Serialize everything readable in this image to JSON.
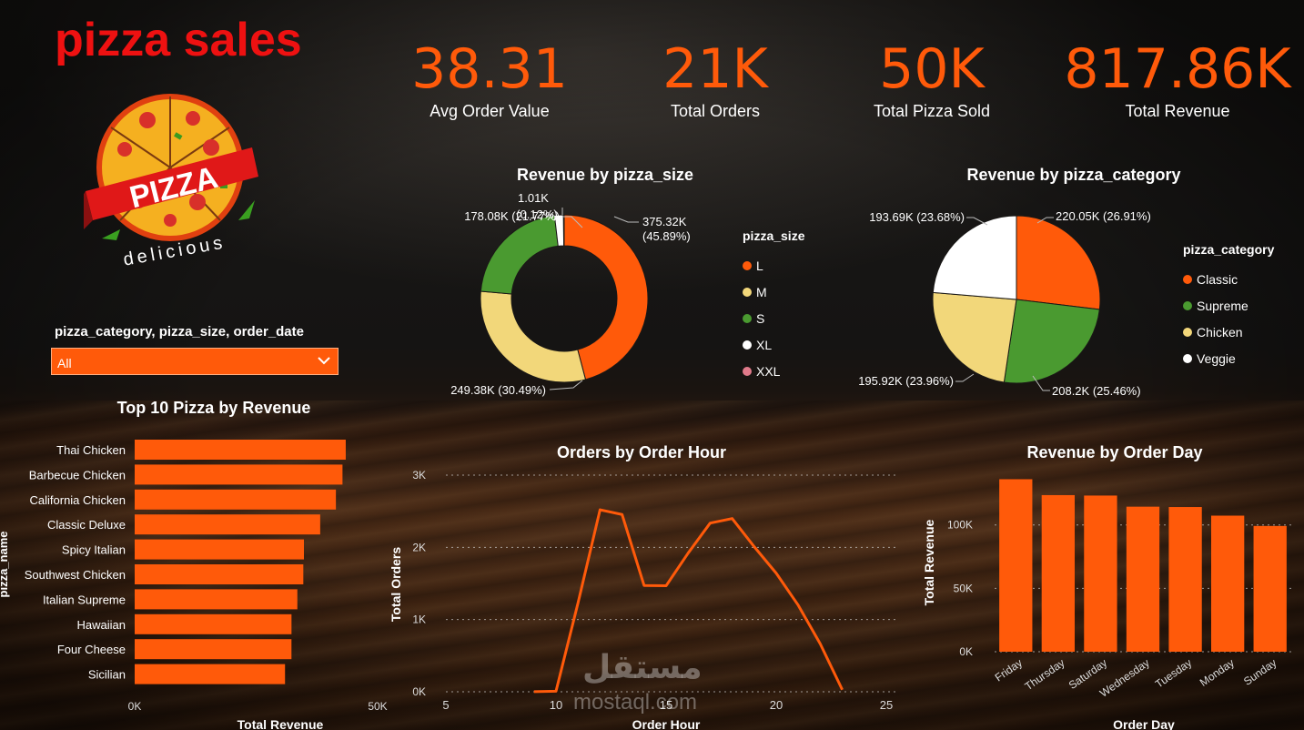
{
  "page": {
    "title": "pizza sales"
  },
  "logo": {
    "main_text": "PIZZA",
    "sub_text": "delicious"
  },
  "kpis": [
    {
      "value": "38.31",
      "label": "Avg Order Value"
    },
    {
      "value": "21K",
      "label": "Total Orders"
    },
    {
      "value": "50K",
      "label": "Total Pizza Sold"
    },
    {
      "value": "817.86K",
      "label": "Total Revenue"
    }
  ],
  "slicer": {
    "label": "pizza_category, pizza_size, order_date",
    "value": "All"
  },
  "colors": {
    "accent": "#ff5a0a",
    "green": "#4a9a30",
    "yellow": "#f2d77a",
    "white": "#ffffff",
    "pink": "#e07a8a",
    "title_red": "#ee1111"
  },
  "watermark": {
    "arabic": "مستقل",
    "latin": "mostaql.com"
  },
  "chart_data": [
    {
      "id": "size",
      "type": "pie",
      "title": "Revenue by pizza_size",
      "legend_title": "pizza_size",
      "legend_position": "right",
      "donut": true,
      "categories": [
        "L",
        "M",
        "S",
        "XL",
        "XXL"
      ],
      "values": [
        375.32,
        249.38,
        178.08,
        14.07,
        1.01
      ],
      "colors": [
        "#ff5a0a",
        "#f2d77a",
        "#4a9a30",
        "#ffffff",
        "#e07a8a"
      ],
      "labels": [
        "375.32K (45.89%)",
        "249.38K (30.49%)",
        "178.08K (21.77%)",
        "",
        "1.01K (0.12%)"
      ]
    },
    {
      "id": "category",
      "type": "pie",
      "title": "Revenue by pizza_category",
      "legend_title": "pizza_category",
      "legend_position": "right",
      "donut": false,
      "categories": [
        "Classic",
        "Supreme",
        "Chicken",
        "Veggie"
      ],
      "values": [
        220.05,
        208.2,
        195.92,
        193.69
      ],
      "colors": [
        "#ff5a0a",
        "#4a9a30",
        "#f2d77a",
        "#ffffff"
      ],
      "labels": [
        "220.05K (26.91%)",
        "208.2K (25.46%)",
        "195.92K (23.96%)",
        "193.69K (23.68%)"
      ]
    },
    {
      "id": "top10",
      "type": "bar",
      "orientation": "horizontal",
      "title": "Top 10 Pizza by Revenue",
      "xlabel": "Total Revenue",
      "ylabel": "pizza_name",
      "categories": [
        "Thai Chicken",
        "Barbecue Chicken",
        "California Chicken",
        "Classic Deluxe",
        "Spicy Italian",
        "Southwest Chicken",
        "Italian Supreme",
        "Hawaiian",
        "Four Cheese",
        "Sicilian"
      ],
      "values": [
        43434,
        42768,
        41410,
        38180,
        34831,
        34706,
        33477,
        32273,
        32266,
        30940
      ],
      "xlim": [
        0,
        50000
      ],
      "x_ticks": [
        "0K",
        "50K"
      ]
    },
    {
      "id": "hours",
      "type": "line",
      "title": "Orders by Order Hour",
      "xlabel": "Order Hour",
      "ylabel": "Total Orders",
      "x": [
        9,
        10,
        11,
        12,
        13,
        14,
        15,
        16,
        17,
        18,
        19,
        20,
        21,
        22,
        23
      ],
      "values": [
        1,
        8,
        1231,
        2520,
        2455,
        1472,
        1468,
        1920,
        2336,
        2399,
        2009,
        1642,
        1198,
        663,
        28
      ],
      "xlim": [
        5,
        25
      ],
      "ylim": [
        0,
        3000
      ],
      "x_ticks": [
        "5",
        "10",
        "15",
        "20",
        "25"
      ],
      "y_ticks": [
        "0K",
        "1K",
        "2K",
        "3K"
      ],
      "grid": true
    },
    {
      "id": "days",
      "type": "bar",
      "orientation": "vertical",
      "title": "Revenue by Order Day",
      "xlabel": "Order Day",
      "ylabel": "Total Revenue",
      "categories": [
        "Friday",
        "Thursday",
        "Saturday",
        "Wednesday",
        "Tuesday",
        "Monday",
        "Sunday"
      ],
      "values": [
        136074,
        123528,
        123182,
        114408,
        114133,
        107330,
        99203
      ],
      "ylim": [
        0,
        140000
      ],
      "y_ticks": [
        "0K",
        "50K",
        "100K"
      ],
      "y_tick_values": [
        0,
        50000,
        100000
      ],
      "grid": true
    }
  ]
}
